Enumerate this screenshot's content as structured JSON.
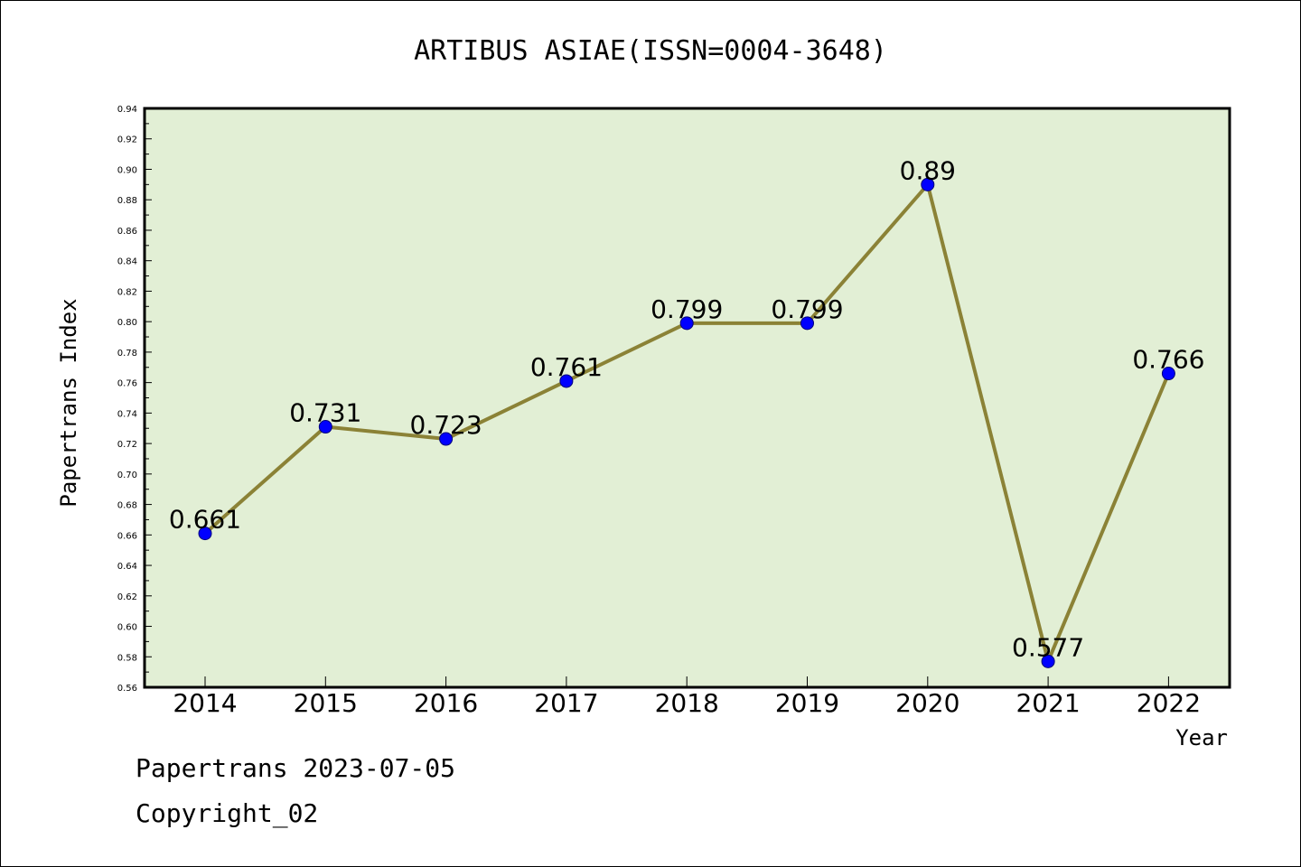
{
  "footer": {
    "date_line": "Papertrans 2023-07-05",
    "copyright": "Copyright_02"
  },
  "chart_data": {
    "type": "line",
    "title": "ARTIBUS ASIAE(ISSN=0004-3648)",
    "xlabel": "Year",
    "ylabel": "Papertrans Index",
    "categories": [
      "2014",
      "2015",
      "2016",
      "2017",
      "2018",
      "2019",
      "2020",
      "2021",
      "2022"
    ],
    "series": [
      {
        "values": [
          0.661,
          0.731,
          0.723,
          0.761,
          0.799,
          0.799,
          0.89,
          0.577,
          0.766
        ],
        "data_labels": [
          "0.661",
          "0.731",
          "0.723",
          "0.761",
          "0.799",
          "0.799",
          "0.89",
          "0.577",
          "0.766"
        ]
      }
    ],
    "ylim": [
      0.56,
      0.94
    ],
    "yticks": [
      "0.56",
      "0.58",
      "0.60",
      "0.62",
      "0.64",
      "0.66",
      "0.68",
      "0.70",
      "0.72",
      "0.74",
      "0.76",
      "0.78",
      "0.80",
      "0.82",
      "0.84",
      "0.86",
      "0.88",
      "0.90",
      "0.92",
      "0.94"
    ],
    "grid": false,
    "legend": "none",
    "colors": {
      "plot_background": "#e2efd5",
      "line": "#8b8236",
      "marker": "#0000ff",
      "frame": "#000000"
    }
  }
}
